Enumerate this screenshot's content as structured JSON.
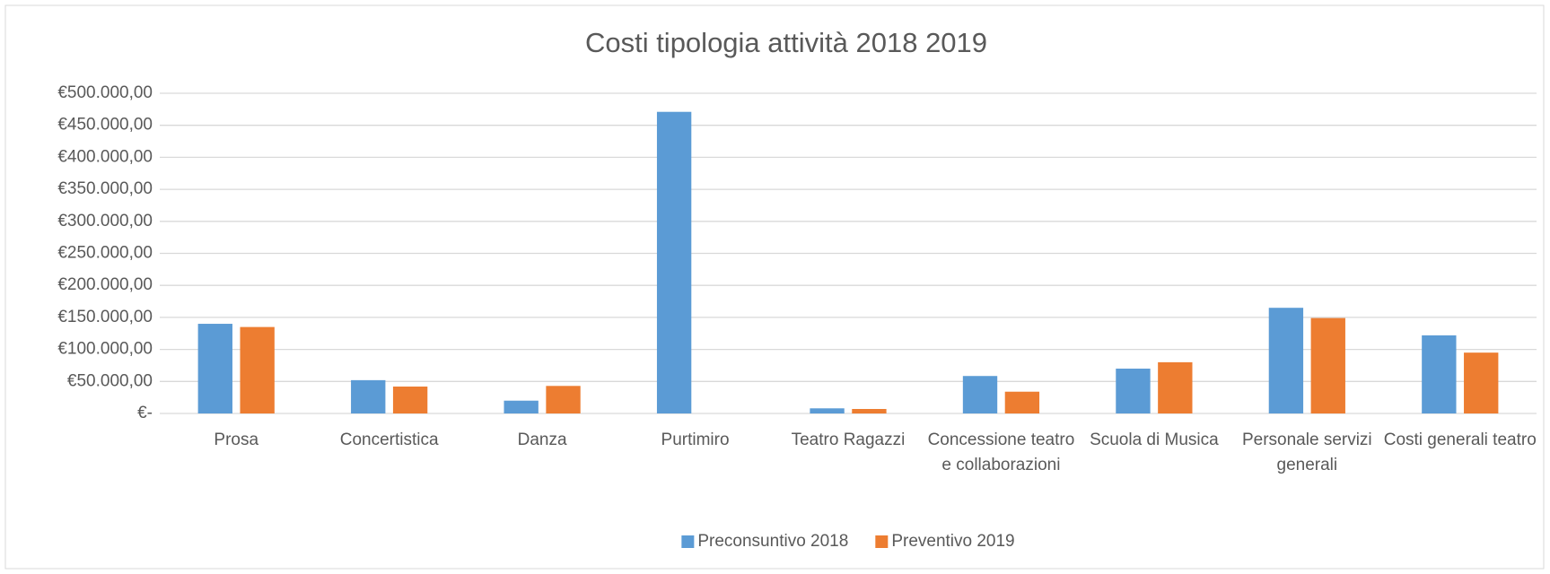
{
  "chart_data": {
    "type": "bar",
    "title": "Costi tipologia attività 2018 2019",
    "categories": [
      "Prosa",
      "Concertistica",
      "Danza",
      "Purtimiro",
      "Teatro Ragazzi",
      "Concessione teatro e collaborazioni",
      "Scuola di Musica",
      "Personale servizi generali",
      "Costi generali teatro"
    ],
    "series": [
      {
        "name": "Preconsuntivo 2018",
        "color": "#5b9bd5",
        "values": [
          140000,
          52000,
          20000,
          471000,
          8000,
          58500,
          70000,
          165000,
          122000
        ]
      },
      {
        "name": "Preventivo 2019",
        "color": "#ed7d31",
        "values": [
          135000,
          42000,
          43000,
          0,
          7000,
          34000,
          80000,
          149000,
          95000
        ]
      }
    ],
    "ylim": [
      0,
      500000
    ],
    "yticks": [
      {
        "value": 0,
        "label": "€-"
      },
      {
        "value": 50000,
        "label": "€50.000,00"
      },
      {
        "value": 100000,
        "label": "€100.000,00"
      },
      {
        "value": 150000,
        "label": "€150.000,00"
      },
      {
        "value": 200000,
        "label": "€200.000,00"
      },
      {
        "value": 250000,
        "label": "€250.000,00"
      },
      {
        "value": 300000,
        "label": "€300.000,00"
      },
      {
        "value": 350000,
        "label": "€350.000,00"
      },
      {
        "value": 400000,
        "label": "€400.000,00"
      },
      {
        "value": 450000,
        "label": "€450.000,00"
      },
      {
        "value": 500000,
        "label": "€500.000,00"
      }
    ],
    "grid": true,
    "legend": "bottom"
  }
}
